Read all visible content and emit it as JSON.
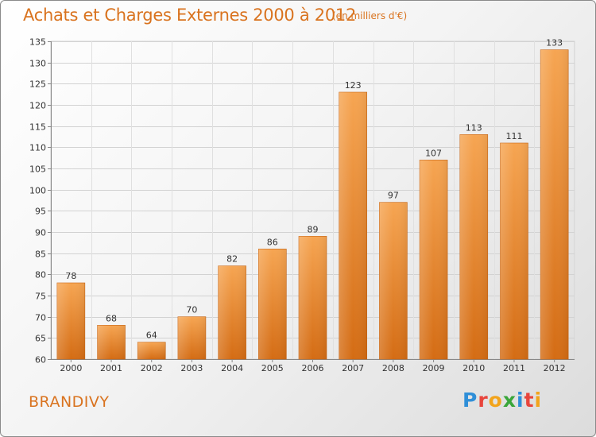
{
  "header": {
    "title": "Achats et Charges Externes 2000 à 2012",
    "subtitle": "(en milliers d'€)"
  },
  "footer": {
    "place": "BRANDIVY",
    "logo": "Proxiti",
    "logo_letters": [
      {
        "ch": "P",
        "color": "#2f8fd8"
      },
      {
        "ch": "r",
        "color": "#e8453c"
      },
      {
        "ch": "o",
        "color": "#f2a41c"
      },
      {
        "ch": "x",
        "color": "#3aa63a"
      },
      {
        "ch": "i",
        "color": "#2f8fd8"
      },
      {
        "ch": "t",
        "color": "#e8453c"
      },
      {
        "ch": "i",
        "color": "#f2a41c"
      }
    ]
  },
  "colors": {
    "accent": "#d9731f",
    "bar_top": "#f6a552",
    "bar_bottom": "#d46c14"
  },
  "chart_data": {
    "type": "bar",
    "title": "Achats et Charges Externes 2000 à 2012",
    "subtitle": "(en milliers d'€)",
    "categories": [
      "2000",
      "2001",
      "2002",
      "2003",
      "2004",
      "2005",
      "2006",
      "2007",
      "2008",
      "2009",
      "2010",
      "2011",
      "2012"
    ],
    "values": [
      78,
      68,
      64,
      70,
      82,
      86,
      89,
      123,
      97,
      107,
      113,
      111,
      133
    ],
    "ylim": [
      60,
      135
    ],
    "yticks": [
      60,
      65,
      70,
      75,
      80,
      85,
      90,
      95,
      100,
      105,
      110,
      115,
      120,
      125,
      130,
      135
    ],
    "grid": true,
    "data_labels": true
  }
}
